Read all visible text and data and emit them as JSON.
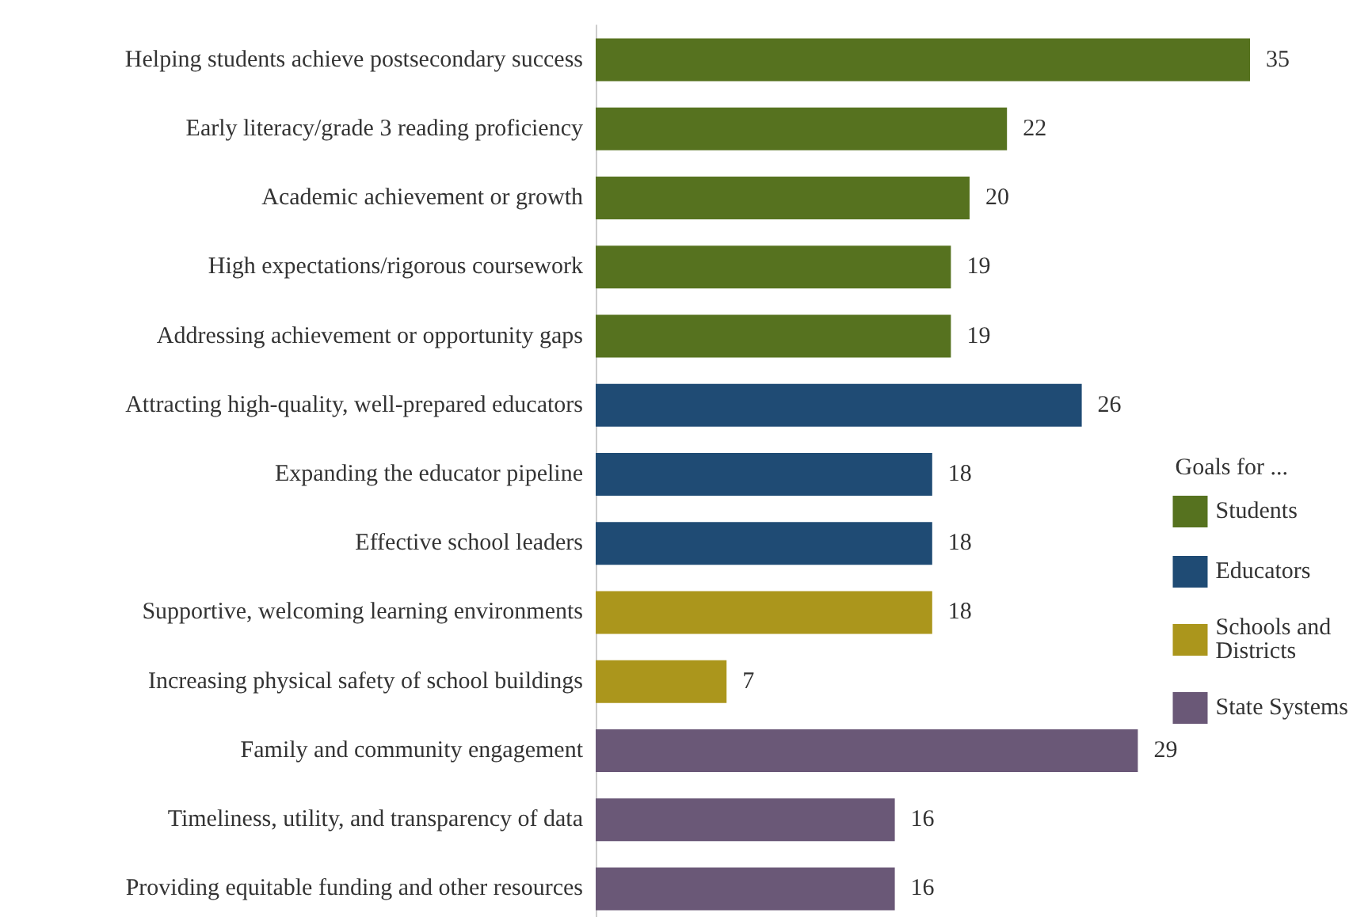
{
  "chart_data": {
    "type": "bar",
    "orientation": "horizontal",
    "stacked": true,
    "data_labels": true,
    "legend": "right",
    "legend_title": "Goals for ...",
    "categories": [
      "Helping students achieve postsecondary success",
      "Early literacy/grade 3 reading proficiency",
      "Academic achievement or growth",
      "High expectations/rigorous coursework",
      "Addressing achievement or opportunity gaps",
      "Attracting high-quality, well-prepared educators",
      "Expanding the educator pipeline",
      "Effective school leaders",
      "Supportive, welcoming learning environments",
      "Increasing physical safety of school buildings",
      "Family and community engagement",
      "Timeliness, utility, and transparency of data",
      "Providing equitable funding and other resources"
    ],
    "series": [
      {
        "name": "Students",
        "color": "#56721f",
        "values": [
          35,
          22,
          20,
          19,
          19,
          null,
          null,
          null,
          null,
          null,
          null,
          null,
          null
        ]
      },
      {
        "name": "Educators",
        "color": "#1f4b74",
        "values": [
          null,
          null,
          null,
          null,
          null,
          26,
          18,
          18,
          null,
          null,
          null,
          null,
          null
        ]
      },
      {
        "name": "Schools and Districts",
        "color": "#ab961c",
        "values": [
          null,
          null,
          null,
          null,
          null,
          null,
          null,
          null,
          18,
          7,
          null,
          null,
          null
        ]
      },
      {
        "name": "State Systems",
        "color": "#6a5877",
        "values": [
          null,
          null,
          null,
          null,
          null,
          null,
          null,
          null,
          null,
          null,
          29,
          16,
          16
        ]
      }
    ]
  }
}
